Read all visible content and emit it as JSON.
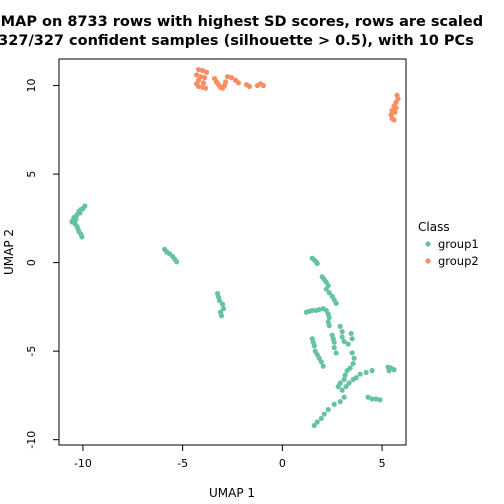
{
  "chart_data": {
    "type": "scatter",
    "title_line1": "UMAP on 8733 rows with highest SD scores, rows are scaled",
    "title_line2": "327/327 confident samples (silhouette > 0.5), with 10 PCs",
    "xlabel": "UMAP 1",
    "ylabel": "UMAP 2",
    "xlim": [
      -11.2,
      6.2
    ],
    "ylim": [
      -10.3,
      11.5
    ],
    "xticks": [
      -10,
      -5,
      0,
      5
    ],
    "yticks": [
      -10,
      -5,
      0,
      5,
      10
    ],
    "xtick_labels": [
      "-10",
      "-5",
      "0",
      "5"
    ],
    "ytick_labels": [
      "-10",
      "-5",
      "0",
      "5",
      "10"
    ],
    "grid": false,
    "legend": {
      "title": "Class",
      "placement": "right"
    },
    "series": [
      {
        "name": "group1",
        "color": "#66C2A5",
        "points": [
          [
            -9.9,
            3.2
          ],
          [
            -10.0,
            3.05
          ],
          [
            -10.1,
            3.0
          ],
          [
            -10.2,
            2.9
          ],
          [
            -10.3,
            2.7
          ],
          [
            -10.45,
            2.55
          ],
          [
            -10.5,
            2.4
          ],
          [
            -10.55,
            2.3
          ],
          [
            -10.4,
            2.2
          ],
          [
            -10.3,
            2.05
          ],
          [
            -10.25,
            1.9
          ],
          [
            -10.2,
            1.75
          ],
          [
            -10.1,
            1.6
          ],
          [
            -10.05,
            1.45
          ],
          [
            -10.35,
            2.45
          ],
          [
            -10.15,
            2.8
          ],
          [
            -5.9,
            0.75
          ],
          [
            -5.8,
            0.6
          ],
          [
            -5.65,
            0.5
          ],
          [
            -5.5,
            0.35
          ],
          [
            -5.4,
            0.2
          ],
          [
            -5.3,
            0.05
          ],
          [
            -3.25,
            -1.75
          ],
          [
            -3.2,
            -1.95
          ],
          [
            -3.15,
            -2.15
          ],
          [
            -3.0,
            -2.35
          ],
          [
            -2.95,
            -2.6
          ],
          [
            -3.1,
            -2.8
          ],
          [
            -3.05,
            -3.0
          ],
          [
            1.5,
            0.25
          ],
          [
            1.6,
            0.15
          ],
          [
            1.7,
            0.05
          ],
          [
            1.75,
            -0.05
          ],
          [
            2.0,
            -0.8
          ],
          [
            2.1,
            -0.95
          ],
          [
            2.2,
            -1.1
          ],
          [
            2.3,
            -1.3
          ],
          [
            2.2,
            -1.5
          ],
          [
            2.35,
            -1.7
          ],
          [
            2.5,
            -1.9
          ],
          [
            2.6,
            -2.1
          ],
          [
            2.7,
            -2.3
          ],
          [
            1.2,
            -2.8
          ],
          [
            1.35,
            -2.75
          ],
          [
            1.5,
            -2.7
          ],
          [
            1.7,
            -2.7
          ],
          [
            1.85,
            -2.65
          ],
          [
            2.05,
            -2.6
          ],
          [
            2.2,
            -2.7
          ],
          [
            2.3,
            -2.9
          ],
          [
            2.35,
            -3.1
          ],
          [
            2.3,
            -3.35
          ],
          [
            2.35,
            -3.55
          ],
          [
            1.5,
            -4.3
          ],
          [
            1.55,
            -4.5
          ],
          [
            1.6,
            -4.7
          ],
          [
            1.65,
            -5.0
          ],
          [
            1.75,
            -5.2
          ],
          [
            1.85,
            -5.4
          ],
          [
            1.95,
            -5.6
          ],
          [
            2.05,
            -5.85
          ],
          [
            2.5,
            -4.1
          ],
          [
            2.55,
            -4.3
          ],
          [
            2.6,
            -4.5
          ],
          [
            2.6,
            -4.8
          ],
          [
            2.7,
            -5.1
          ],
          [
            2.9,
            -3.6
          ],
          [
            3.0,
            -3.9
          ],
          [
            3.0,
            -4.2
          ],
          [
            3.1,
            -4.45
          ],
          [
            3.3,
            -4.6
          ],
          [
            3.5,
            -4.3
          ],
          [
            3.45,
            -4.0
          ],
          [
            3.5,
            -5.1
          ],
          [
            3.6,
            -5.4
          ],
          [
            3.55,
            -5.7
          ],
          [
            3.4,
            -5.95
          ],
          [
            3.25,
            -6.1
          ],
          [
            3.15,
            -6.35
          ],
          [
            3.1,
            -6.6
          ],
          [
            2.9,
            -6.8
          ],
          [
            2.8,
            -7.0
          ],
          [
            3.0,
            -7.2
          ],
          [
            3.2,
            -7.0
          ],
          [
            3.35,
            -6.8
          ],
          [
            3.55,
            -6.6
          ],
          [
            3.7,
            -6.5
          ],
          [
            3.9,
            -6.3
          ],
          [
            4.2,
            -6.2
          ],
          [
            4.5,
            -6.1
          ],
          [
            5.3,
            -5.9
          ],
          [
            5.45,
            -5.95
          ],
          [
            5.6,
            -6.05
          ],
          [
            5.35,
            -6.1
          ],
          [
            4.3,
            -7.6
          ],
          [
            4.5,
            -7.7
          ],
          [
            4.7,
            -7.7
          ],
          [
            4.9,
            -7.75
          ],
          [
            3.1,
            -7.6
          ],
          [
            2.9,
            -7.85
          ],
          [
            2.6,
            -8.0
          ],
          [
            2.3,
            -8.3
          ],
          [
            2.1,
            -8.55
          ],
          [
            1.95,
            -8.8
          ],
          [
            1.75,
            -9.0
          ],
          [
            1.6,
            -9.2
          ]
        ]
      },
      {
        "name": "group2",
        "color": "#FC8D62",
        "points": [
          [
            -4.2,
            10.9
          ],
          [
            -4.0,
            10.85
          ],
          [
            -3.8,
            10.75
          ],
          [
            -4.3,
            10.6
          ],
          [
            -4.1,
            10.5
          ],
          [
            -3.9,
            10.45
          ],
          [
            -4.2,
            10.3
          ],
          [
            -4.3,
            10.1
          ],
          [
            -4.2,
            9.95
          ],
          [
            -4.0,
            9.9
          ],
          [
            -3.85,
            9.85
          ],
          [
            -3.95,
            10.15
          ],
          [
            -3.4,
            10.4
          ],
          [
            -3.3,
            10.2
          ],
          [
            -3.2,
            10.05
          ],
          [
            -3.1,
            9.9
          ],
          [
            -3.0,
            9.85
          ],
          [
            -2.9,
            10.0
          ],
          [
            -2.85,
            10.2
          ],
          [
            -2.75,
            10.5
          ],
          [
            -2.55,
            10.45
          ],
          [
            -2.35,
            10.3
          ],
          [
            -2.2,
            10.15
          ],
          [
            -1.8,
            10.05
          ],
          [
            -1.65,
            9.95
          ],
          [
            -1.25,
            10.0
          ],
          [
            -1.1,
            10.1
          ],
          [
            -0.95,
            10.0
          ],
          [
            5.75,
            9.45
          ],
          [
            5.8,
            9.25
          ],
          [
            5.7,
            9.05
          ],
          [
            5.6,
            8.85
          ],
          [
            5.5,
            8.6
          ],
          [
            5.45,
            8.35
          ],
          [
            5.5,
            8.15
          ],
          [
            5.6,
            8.05
          ],
          [
            5.65,
            8.5
          ],
          [
            5.7,
            8.75
          ]
        ]
      }
    ]
  }
}
